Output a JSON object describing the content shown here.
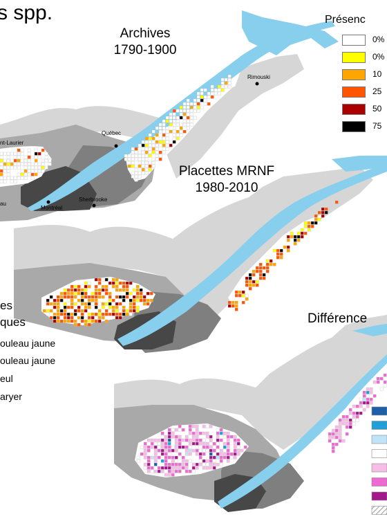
{
  "title": "s spp.",
  "maps": [
    {
      "title_line1": "Archives",
      "title_line2": "1790-1900"
    },
    {
      "title_line1": "Placettes MRNF",
      "title_line2": "1980-2010"
    },
    {
      "title_line1": "Différence",
      "title_line2": ""
    }
  ],
  "cities": [
    "Rimouski",
    "Québec",
    "nt-Laurier",
    "Montréal",
    "Sherbrooke",
    "au"
  ],
  "presence_legend": {
    "heading": "Présenc",
    "items": [
      {
        "label": "0%",
        "color": "#ffffff"
      },
      {
        "label": "0%",
        "color": "#ffff00"
      },
      {
        "label": "10",
        "color": "#ffa500"
      },
      {
        "label": "25",
        "color": "#ff5500"
      },
      {
        "label": "50",
        "color": "#aa0000"
      },
      {
        "label": "75",
        "color": "#000000"
      }
    ]
  },
  "species_legend": {
    "heading_line1": "es",
    "heading_line2": "ques",
    "items": [
      "ouleau jaune",
      "ouleau jaune",
      "eul",
      "aryer"
    ]
  },
  "difference_legend_colors": [
    "#1f5fa8",
    "#21a0d8",
    "#bfe4f7",
    "#ffffff",
    "#f7bde6",
    "#ee6ad2",
    "#a3188a",
    "hatched"
  ],
  "colors": {
    "water": "#87cfed",
    "zone_light": "#d6d6d6",
    "zone_mid": "#a9a9a9",
    "zone_dark": "#7f7f7f",
    "zone_darkest": "#474747",
    "white_regions": "#ffffff"
  }
}
